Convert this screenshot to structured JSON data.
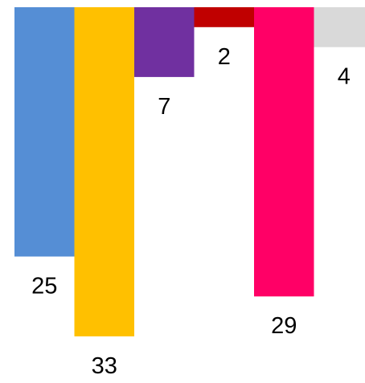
{
  "chart_data": {
    "type": "bar",
    "orientation": "vertical-hanging",
    "categories": [
      "",
      "",
      "",
      "",
      "",
      ""
    ],
    "values": [
      25,
      33,
      7,
      2,
      29,
      4
    ],
    "value_labels": [
      "25",
      "33",
      "7",
      "2",
      "29",
      "4"
    ],
    "colors": [
      "#558ed5",
      "#ffc000",
      "#7030a0",
      "#c00000",
      "#ff0066",
      "#d9d9d9"
    ],
    "title": "",
    "xlabel": "",
    "ylabel": "",
    "ylim": [
      0,
      33
    ],
    "grid": false,
    "legend": "none"
  }
}
